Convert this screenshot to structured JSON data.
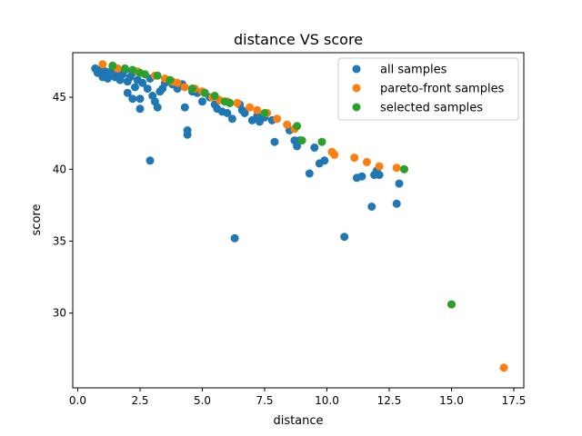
{
  "chart_data": {
    "type": "scatter",
    "title": "distance VS score",
    "xlabel": "distance",
    "ylabel": "score",
    "xlim": [
      -0.2,
      17.9
    ],
    "ylim": [
      24.8,
      48.1
    ],
    "xticks": [
      0.0,
      2.5,
      5.0,
      7.5,
      10.0,
      12.5,
      15.0,
      17.5
    ],
    "xtick_labels": [
      "0.0",
      "2.5",
      "5.0",
      "7.5",
      "10.0",
      "12.5",
      "15.0",
      "17.5"
    ],
    "yticks": [
      30,
      35,
      40,
      45
    ],
    "ytick_labels": [
      "30",
      "35",
      "40",
      "45"
    ],
    "grid": false,
    "legend_position": "top-right",
    "series": [
      {
        "name": "all samples",
        "color": "#1f77b4",
        "points": [
          [
            0.7,
            47.0
          ],
          [
            0.8,
            46.7
          ],
          [
            0.9,
            46.9
          ],
          [
            1.0,
            46.4
          ],
          [
            1.1,
            46.8
          ],
          [
            1.2,
            46.3
          ],
          [
            1.3,
            46.6
          ],
          [
            1.4,
            47.0
          ],
          [
            1.5,
            46.4
          ],
          [
            1.6,
            46.8
          ],
          [
            1.7,
            46.2
          ],
          [
            1.8,
            46.6
          ],
          [
            1.9,
            46.9
          ],
          [
            2.0,
            46.1
          ],
          [
            2.1,
            46.4
          ],
          [
            2.2,
            46.7
          ],
          [
            2.3,
            45.7
          ],
          [
            2.4,
            46.2
          ],
          [
            2.6,
            46.0
          ],
          [
            2.8,
            45.6
          ],
          [
            2.9,
            46.3
          ],
          [
            3.0,
            45.1
          ],
          [
            3.1,
            44.7
          ],
          [
            3.2,
            44.3
          ],
          [
            3.3,
            45.4
          ],
          [
            3.5,
            46.0
          ],
          [
            3.8,
            45.9
          ],
          [
            4.0,
            45.6
          ],
          [
            4.3,
            44.3
          ],
          [
            4.4,
            42.7
          ],
          [
            4.4,
            42.4
          ],
          [
            4.6,
            45.4
          ],
          [
            4.8,
            45.3
          ],
          [
            5.0,
            44.7
          ],
          [
            5.3,
            45.0
          ],
          [
            5.5,
            44.5
          ],
          [
            5.6,
            44.2
          ],
          [
            5.8,
            44.0
          ],
          [
            6.0,
            43.9
          ],
          [
            6.2,
            43.5
          ],
          [
            6.5,
            44.5
          ],
          [
            6.7,
            43.9
          ],
          [
            7.0,
            43.4
          ],
          [
            7.3,
            43.3
          ],
          [
            7.5,
            43.6
          ],
          [
            7.8,
            43.4
          ],
          [
            7.9,
            41.9
          ],
          [
            8.5,
            42.7
          ],
          [
            8.7,
            42.0
          ],
          [
            8.9,
            42.0
          ],
          [
            9.3,
            39.7
          ],
          [
            9.5,
            41.5
          ],
          [
            9.7,
            40.4
          ],
          [
            9.9,
            40.6
          ],
          [
            11.2,
            39.4
          ],
          [
            11.4,
            39.5
          ],
          [
            11.8,
            37.4
          ],
          [
            11.9,
            39.6
          ],
          [
            12.1,
            39.6
          ],
          [
            12.8,
            37.6
          ],
          [
            12.9,
            39.0
          ],
          [
            2.0,
            45.3
          ],
          [
            2.2,
            44.9
          ],
          [
            2.5,
            44.2
          ],
          [
            2.5,
            44.9
          ],
          [
            2.9,
            40.6
          ],
          [
            6.3,
            35.2
          ],
          [
            10.7,
            35.3
          ],
          [
            8.8,
            41.6
          ],
          [
            12.0,
            39.9
          ],
          [
            3.4,
            45.6
          ],
          [
            4.2,
            45.9
          ],
          [
            5.1,
            45.3
          ],
          [
            6.1,
            44.6
          ],
          [
            6.6,
            44.1
          ],
          [
            7.2,
            43.7
          ]
        ]
      },
      {
        "name": "pareto-front samples",
        "color": "#ff7f0e",
        "points": [
          [
            1.0,
            47.3
          ],
          [
            1.6,
            47.0
          ],
          [
            2.4,
            46.8
          ],
          [
            3.1,
            46.5
          ],
          [
            3.5,
            46.3
          ],
          [
            3.8,
            46.1
          ],
          [
            4.0,
            46.0
          ],
          [
            4.3,
            45.7
          ],
          [
            4.7,
            45.6
          ],
          [
            5.0,
            45.4
          ],
          [
            5.4,
            45.0
          ],
          [
            5.7,
            44.8
          ],
          [
            6.0,
            44.7
          ],
          [
            6.4,
            44.6
          ],
          [
            6.9,
            44.3
          ],
          [
            7.2,
            44.1
          ],
          [
            7.6,
            43.9
          ],
          [
            8.0,
            43.5
          ],
          [
            8.4,
            43.1
          ],
          [
            8.7,
            42.8
          ],
          [
            10.2,
            41.2
          ],
          [
            10.3,
            41.0
          ],
          [
            11.1,
            40.8
          ],
          [
            11.6,
            40.5
          ],
          [
            12.1,
            40.2
          ],
          [
            12.8,
            40.1
          ],
          [
            13.1,
            40.0
          ],
          [
            15.0,
            30.6
          ],
          [
            17.1,
            26.2
          ]
        ]
      },
      {
        "name": "selected samples",
        "color": "#2ca02c",
        "points": [
          [
            1.4,
            47.2
          ],
          [
            1.9,
            47.0
          ],
          [
            2.2,
            46.9
          ],
          [
            2.5,
            46.7
          ],
          [
            2.7,
            46.6
          ],
          [
            3.2,
            46.5
          ],
          [
            3.7,
            46.2
          ],
          [
            4.6,
            45.6
          ],
          [
            5.1,
            45.3
          ],
          [
            5.5,
            45.1
          ],
          [
            5.9,
            44.7
          ],
          [
            6.1,
            44.6
          ],
          [
            7.5,
            43.9
          ],
          [
            8.8,
            43.0
          ],
          [
            9.0,
            42.0
          ],
          [
            9.8,
            41.9
          ],
          [
            13.1,
            40.0
          ],
          [
            15.0,
            30.6
          ]
        ]
      }
    ]
  }
}
